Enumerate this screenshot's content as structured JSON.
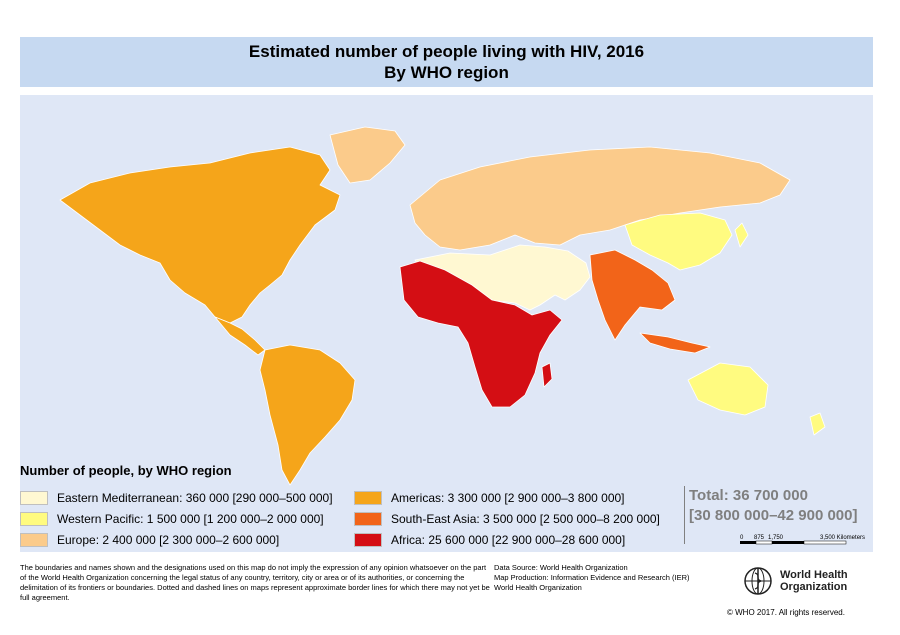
{
  "title": {
    "line1": "Estimated number of people living with HIV, 2016",
    "line2": "By WHO region"
  },
  "legend": {
    "heading": "Number of people, by WHO region",
    "items": [
      {
        "label": "Eastern Mediterranean: 360 000 [290 000–500 000]",
        "color": "#fff8d2"
      },
      {
        "label": "Western Pacific: 1 500 000 [1 200 000–2 000 000]",
        "color": "#fffb80"
      },
      {
        "label": "Europe: 2 400 000 [2 300 000–2 600 000]",
        "color": "#fbcb8b"
      },
      {
        "label": "Americas: 3 300 000 [2 900 000–3 800 000]",
        "color": "#f5a51a"
      },
      {
        "label": "South-East Asia: 3 500 000 [2 500 000–8 200 000]",
        "color": "#f26419"
      },
      {
        "label": "Africa: 25 600 000 [22 900 000–28 600 000]",
        "color": "#d40e14"
      }
    ]
  },
  "total": {
    "line1": "Total: 36 700 000",
    "line2": "[30 800 000–42 900 000]"
  },
  "scale": {
    "ticks": [
      "0",
      "875",
      "1,750",
      "3,500 Kilometers"
    ]
  },
  "footer": {
    "disclaimer": "The boundaries and names shown and the designations used on this map do not imply the expression of any opinion whatsoever on the part of the World Health Organization concerning the legal status of any country, territory, city or area or of its authorities, or concerning the delimitation of its frontiers or boundaries. Dotted and dashed lines on maps represent approximate border lines for which there may not yet be full agreement.",
    "data_source": "Data Source: World Health Organization",
    "map_production": "Map Production: Information Evidence and Research (IER)",
    "org": "World Health Organization",
    "logo_line1": "World Health",
    "logo_line2": "Organization",
    "copyright": "© WHO 2017. All rights reserved."
  },
  "colors": {
    "ocean": "#dfe7f6",
    "title_band": "#c6d9f1",
    "border": "#ffffff"
  }
}
